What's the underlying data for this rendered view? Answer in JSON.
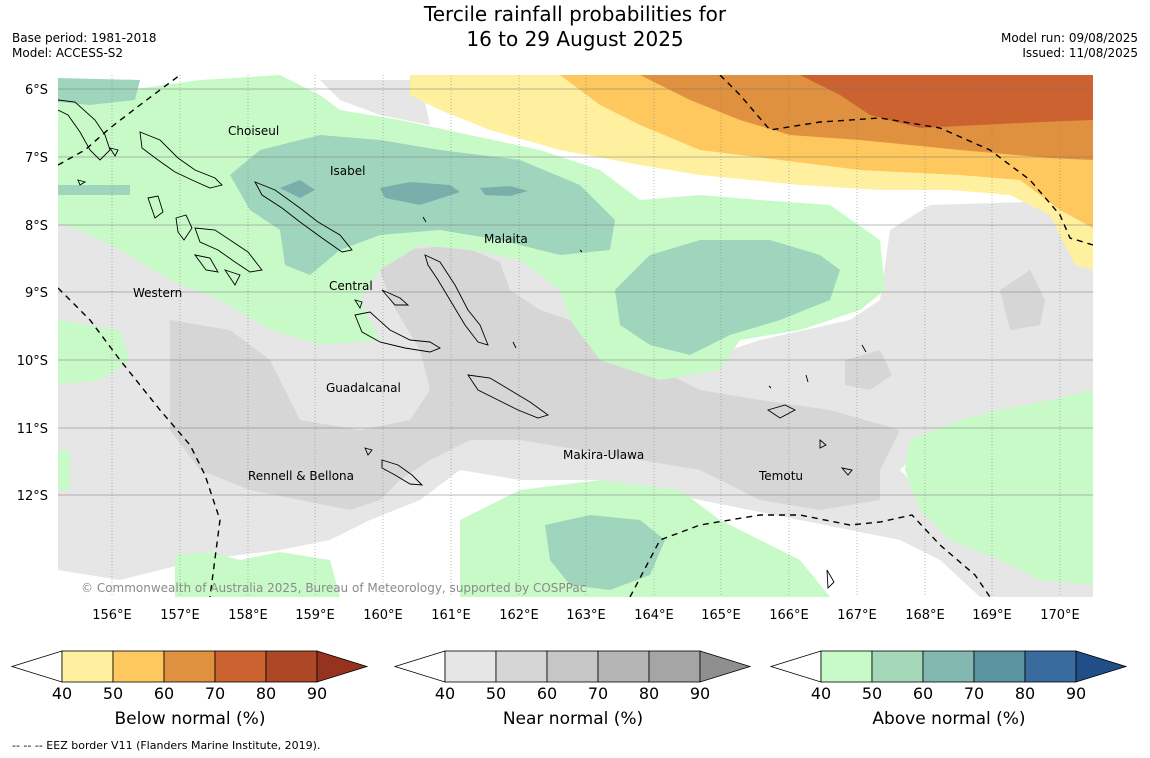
{
  "header": {
    "title_line1": "Tercile rainfall probabilities for",
    "title_line2": "16 to 29 August 2025",
    "base_period": "Base period: 1981-2018",
    "model": "Model: ACCESS-S2",
    "model_run": "Model run: 09/08/2025",
    "issued": "Issued: 11/08/2025"
  },
  "map": {
    "lat_labels": [
      "6°S",
      "7°S",
      "8°S",
      "9°S",
      "10°S",
      "11°S",
      "12°S"
    ],
    "lon_labels": [
      "156°E",
      "157°E",
      "158°E",
      "159°E",
      "160°E",
      "161°E",
      "162°E",
      "163°E",
      "164°E",
      "165°E",
      "166°E",
      "167°E",
      "168°E",
      "169°E",
      "170°E"
    ],
    "region_labels": {
      "choiseul": "Choiseul",
      "isabel": "Isabel",
      "malaita": "Malaita",
      "western": "Western",
      "central": "Central",
      "guadalcanal": "Guadalcanal",
      "makira": "Makira-Ulawa",
      "rennell": "Rennell & Bellona",
      "temotu": "Temotu"
    },
    "copyright": "© Commonwealth of Australia 2025, Bureau of Meteorology, supported by COSPPac"
  },
  "colorbars": [
    {
      "title": "Below normal (%)",
      "ticks": [
        "40",
        "50",
        "60",
        "70",
        "80",
        "90"
      ],
      "colors": [
        "#fff0a0",
        "#fec85e",
        "#e0913f",
        "#cc6230",
        "#ad4826"
      ],
      "arrow": "#96331f"
    },
    {
      "title": "Near normal (%)",
      "ticks": [
        "40",
        "50",
        "60",
        "70",
        "80",
        "90"
      ],
      "colors": [
        "#e6e6e6",
        "#d6d6d6",
        "#c6c6c6",
        "#b5b5b5",
        "#a5a5a5"
      ],
      "arrow": "#8f8f8f"
    },
    {
      "title": "Above normal (%)",
      "ticks": [
        "40",
        "50",
        "60",
        "70",
        "80",
        "90"
      ],
      "colors": [
        "#c8fac8",
        "#a5d8b8",
        "#82b8b0",
        "#5b93a0",
        "#3a6b9e"
      ],
      "arrow": "#1f4f86"
    }
  ],
  "footnote": "--  --  -- EEZ border V11 (Flanders Marine Institute, 2019).",
  "colors": {
    "below_50": "#fff0a0",
    "below_60": "#fec85e",
    "below_70": "#e0913f",
    "below_80": "#cc6230",
    "near_40": "#e6e6e6",
    "near_50": "#d6d6d6",
    "above_40": "#c8fac8",
    "above_50": "#9fd5bd",
    "above_60": "#7aaeaa"
  }
}
